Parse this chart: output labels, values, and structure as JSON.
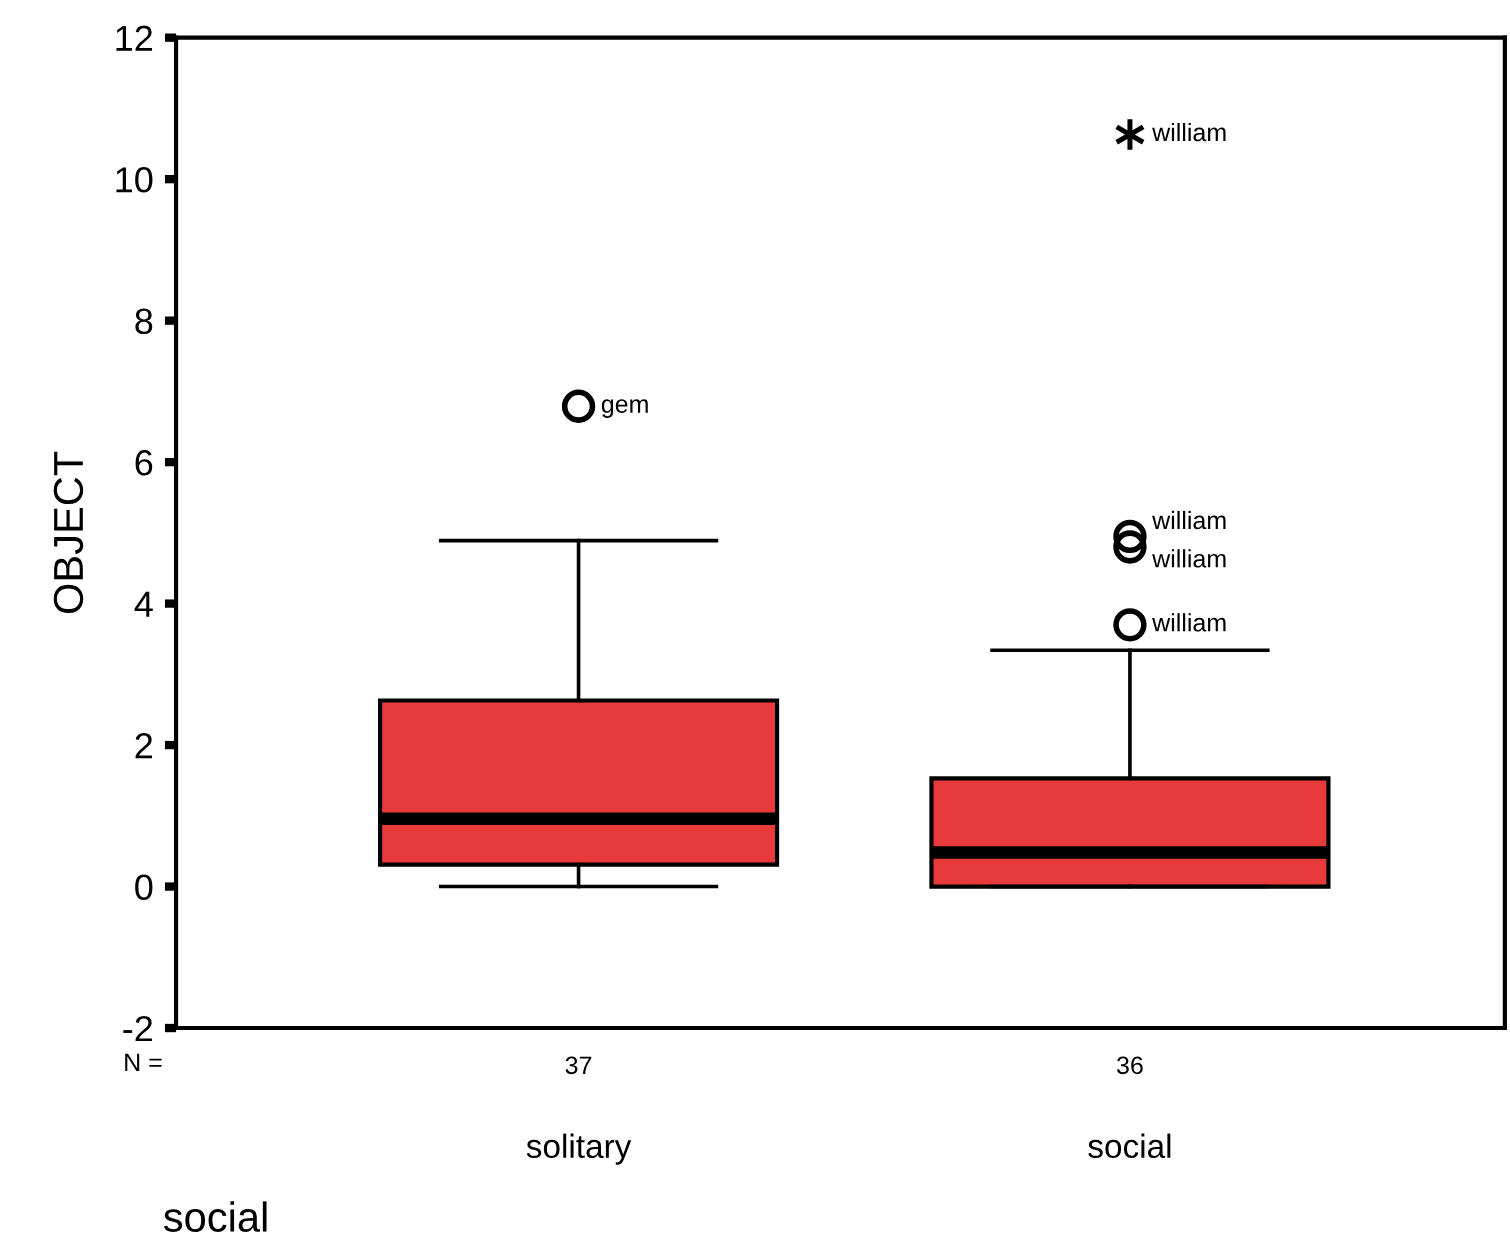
{
  "chart_data": {
    "type": "box",
    "categories": [
      "solitary",
      "social"
    ],
    "xlabel": "social",
    "ylabel": "OBJECT",
    "boxes": [
      {
        "low": 0,
        "q1": 0.31,
        "median": 0.96,
        "q3": 2.63,
        "high": 4.89,
        "outliers": [
          6.79
        ]
      },
      {
        "low": 0,
        "q1": 0,
        "median": 0.48,
        "q3": 1.53,
        "high": 3.34,
        "outliers": [
          3.7,
          4.8,
          4.95,
          10.63
        ]
      }
    ],
    "color": "#e83a3a",
    "ylim": [
      -2,
      12
    ],
    "yticks": [
      -2,
      0,
      2,
      4,
      6,
      8,
      10,
      12
    ],
    "grid": false,
    "annotations": [
      "N =",
      "37",
      "36",
      "gem",
      "william",
      "william",
      "william",
      "william"
    ]
  }
}
